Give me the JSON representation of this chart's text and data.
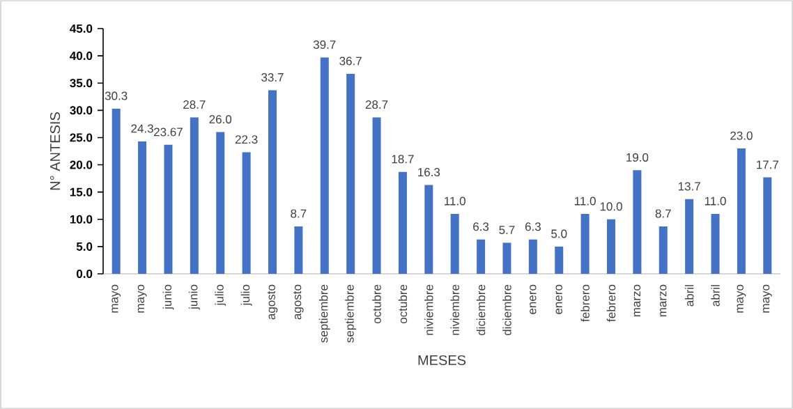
{
  "chart_data": {
    "type": "bar",
    "xlabel": "MESES",
    "ylabel": "N° ANTESIS",
    "categories": [
      "mayo",
      "mayo",
      "junio",
      "junio",
      "julio",
      "julio",
      "agosto",
      "agosto",
      "septiembre",
      "septiembre",
      "octubre",
      "octubre",
      "niviembre",
      "niviembre",
      "diciembre",
      "diciembre",
      "enero",
      "enero",
      "febrero",
      "febrero",
      "marzo",
      "marzo",
      "abril",
      "abril",
      "mayo",
      "mayo"
    ],
    "values": [
      30.3,
      24.3,
      23.67,
      28.7,
      26.0,
      22.3,
      33.7,
      8.7,
      39.7,
      36.7,
      28.7,
      18.7,
      16.3,
      11.0,
      6.3,
      5.7,
      6.3,
      5.0,
      11.0,
      10.0,
      19.0,
      8.7,
      13.7,
      11.0,
      23.0,
      17.7
    ],
    "value_labels": [
      "30.3",
      "24.3",
      "23.67",
      "28.7",
      "26.0",
      "22.3",
      "33.7",
      "8.7",
      "39.7",
      "36.7",
      "28.7",
      "18.7",
      "16.3",
      "11.0",
      "6.3",
      "5.7",
      "6.3",
      "5.0",
      "11.0",
      "10.0",
      "19.0",
      "8.7",
      "13.7",
      "11.0",
      "23.0",
      "17.7"
    ],
    "color": "#4472c4",
    "ylim": [
      0,
      45
    ],
    "yticks": [
      {
        "value": 0,
        "label": "0.0"
      },
      {
        "value": 5,
        "label": "5.0"
      },
      {
        "value": 10,
        "label": "10.0"
      },
      {
        "value": 15,
        "label": "15.0"
      },
      {
        "value": 20,
        "label": "20.0"
      },
      {
        "value": 25,
        "label": "25.0"
      },
      {
        "value": 30,
        "label": "30.0"
      },
      {
        "value": 35,
        "label": "35.0"
      },
      {
        "value": 40,
        "label": "40.0"
      },
      {
        "value": 45,
        "label": "45.0"
      }
    ]
  }
}
